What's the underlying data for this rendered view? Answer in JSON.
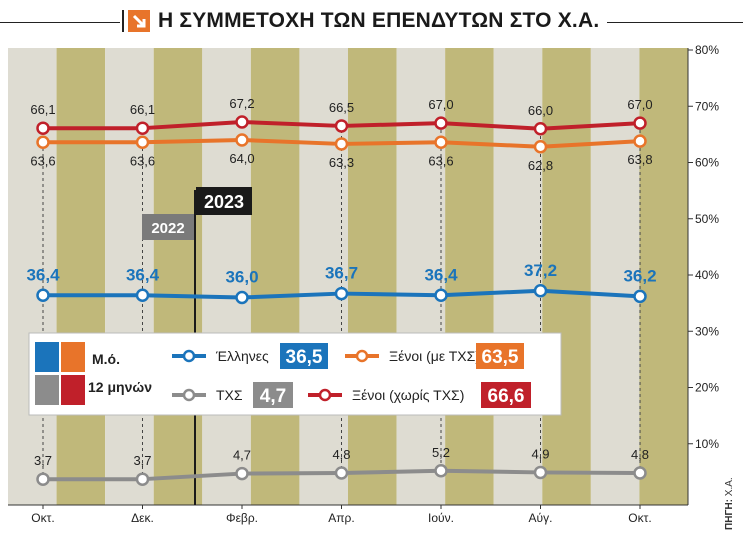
{
  "title": "Η ΣΥΜΜΕΤΟΧΗ ΤΩΝ ΕΠΕΝΔΥΤΩΝ ΣΤΟ Χ.Α.",
  "source_label": "ΠΗΓΗ:",
  "source_value": "Χ.Α.",
  "colors": {
    "band_light": "#dedcd2",
    "band_dark": "#c0b87a",
    "greeks": "#1b74bb",
    "foreign_with": "#e8742a",
    "foreign_without": "#c0202a",
    "chx": "#8c8c8c",
    "year_dark": "#1a1a1a",
    "year_grey": "#7a7a7a"
  },
  "years": {
    "y2022": "2022",
    "y2023": "2023"
  },
  "chart_data": {
    "type": "line",
    "x": [
      "Οκτ.",
      "Δεκ.",
      "Φεβρ.",
      "Απρ.",
      "Ιούν.",
      "Αύγ.",
      "Οκτ."
    ],
    "ylim": [
      0,
      80
    ],
    "yticks": [
      "10%",
      "20%",
      "30%",
      "40%",
      "50%",
      "60%",
      "70%",
      "80%"
    ],
    "grid": false,
    "series": [
      {
        "name": "Ξένοι (χωρίς ΤΧΣ)",
        "color": "#c0202a",
        "values": [
          66.1,
          66.1,
          67.2,
          66.5,
          67.0,
          66.0,
          67.0
        ],
        "labels": [
          "66,1",
          "66,1",
          "67,2",
          "66,5",
          "67,0",
          "66,0",
          "67,0"
        ],
        "label_pos": "above",
        "label_style": "normal"
      },
      {
        "name": "Ξένοι (με ΤΧΣ)",
        "color": "#e8742a",
        "values": [
          63.6,
          63.6,
          64.0,
          63.3,
          63.6,
          62.8,
          63.8
        ],
        "labels": [
          "63,6",
          "63,6",
          "64,0",
          "63,3",
          "63,6",
          "62,8",
          "63,8"
        ],
        "label_pos": "below",
        "label_style": "normal"
      },
      {
        "name": "Έλληνες",
        "color": "#1b74bb",
        "values": [
          36.4,
          36.4,
          36.0,
          36.7,
          36.4,
          37.2,
          36.2
        ],
        "labels": [
          "36,4",
          "36,4",
          "36,0",
          "36,7",
          "36,4",
          "37,2",
          "36,2"
        ],
        "label_pos": "above",
        "label_style": "big"
      },
      {
        "name": "ΤΧΣ",
        "color": "#8c8c8c",
        "values": [
          3.7,
          3.7,
          4.7,
          4.8,
          5.2,
          4.9,
          4.8
        ],
        "labels": [
          "3,7",
          "3,7",
          "4,7",
          "4,8",
          "5,2",
          "4,9",
          "4,8"
        ],
        "label_pos": "above",
        "label_style": "normal"
      }
    ]
  },
  "legend": {
    "avg_label": "Μ.ό.",
    "period_label": "12 μηνών",
    "items": [
      {
        "name": "Έλληνες",
        "value": "36,5",
        "color": "#1b74bb"
      },
      {
        "name": "Ξένοι (με ΤΧΣ)",
        "value": "63,5",
        "color": "#e8742a"
      },
      {
        "name": "ΤΧΣ",
        "value": "4,7",
        "color": "#8c8c8c"
      },
      {
        "name": "Ξένοι (χωρίς ΤΧΣ)",
        "value": "66,6",
        "color": "#c0202a"
      }
    ]
  }
}
